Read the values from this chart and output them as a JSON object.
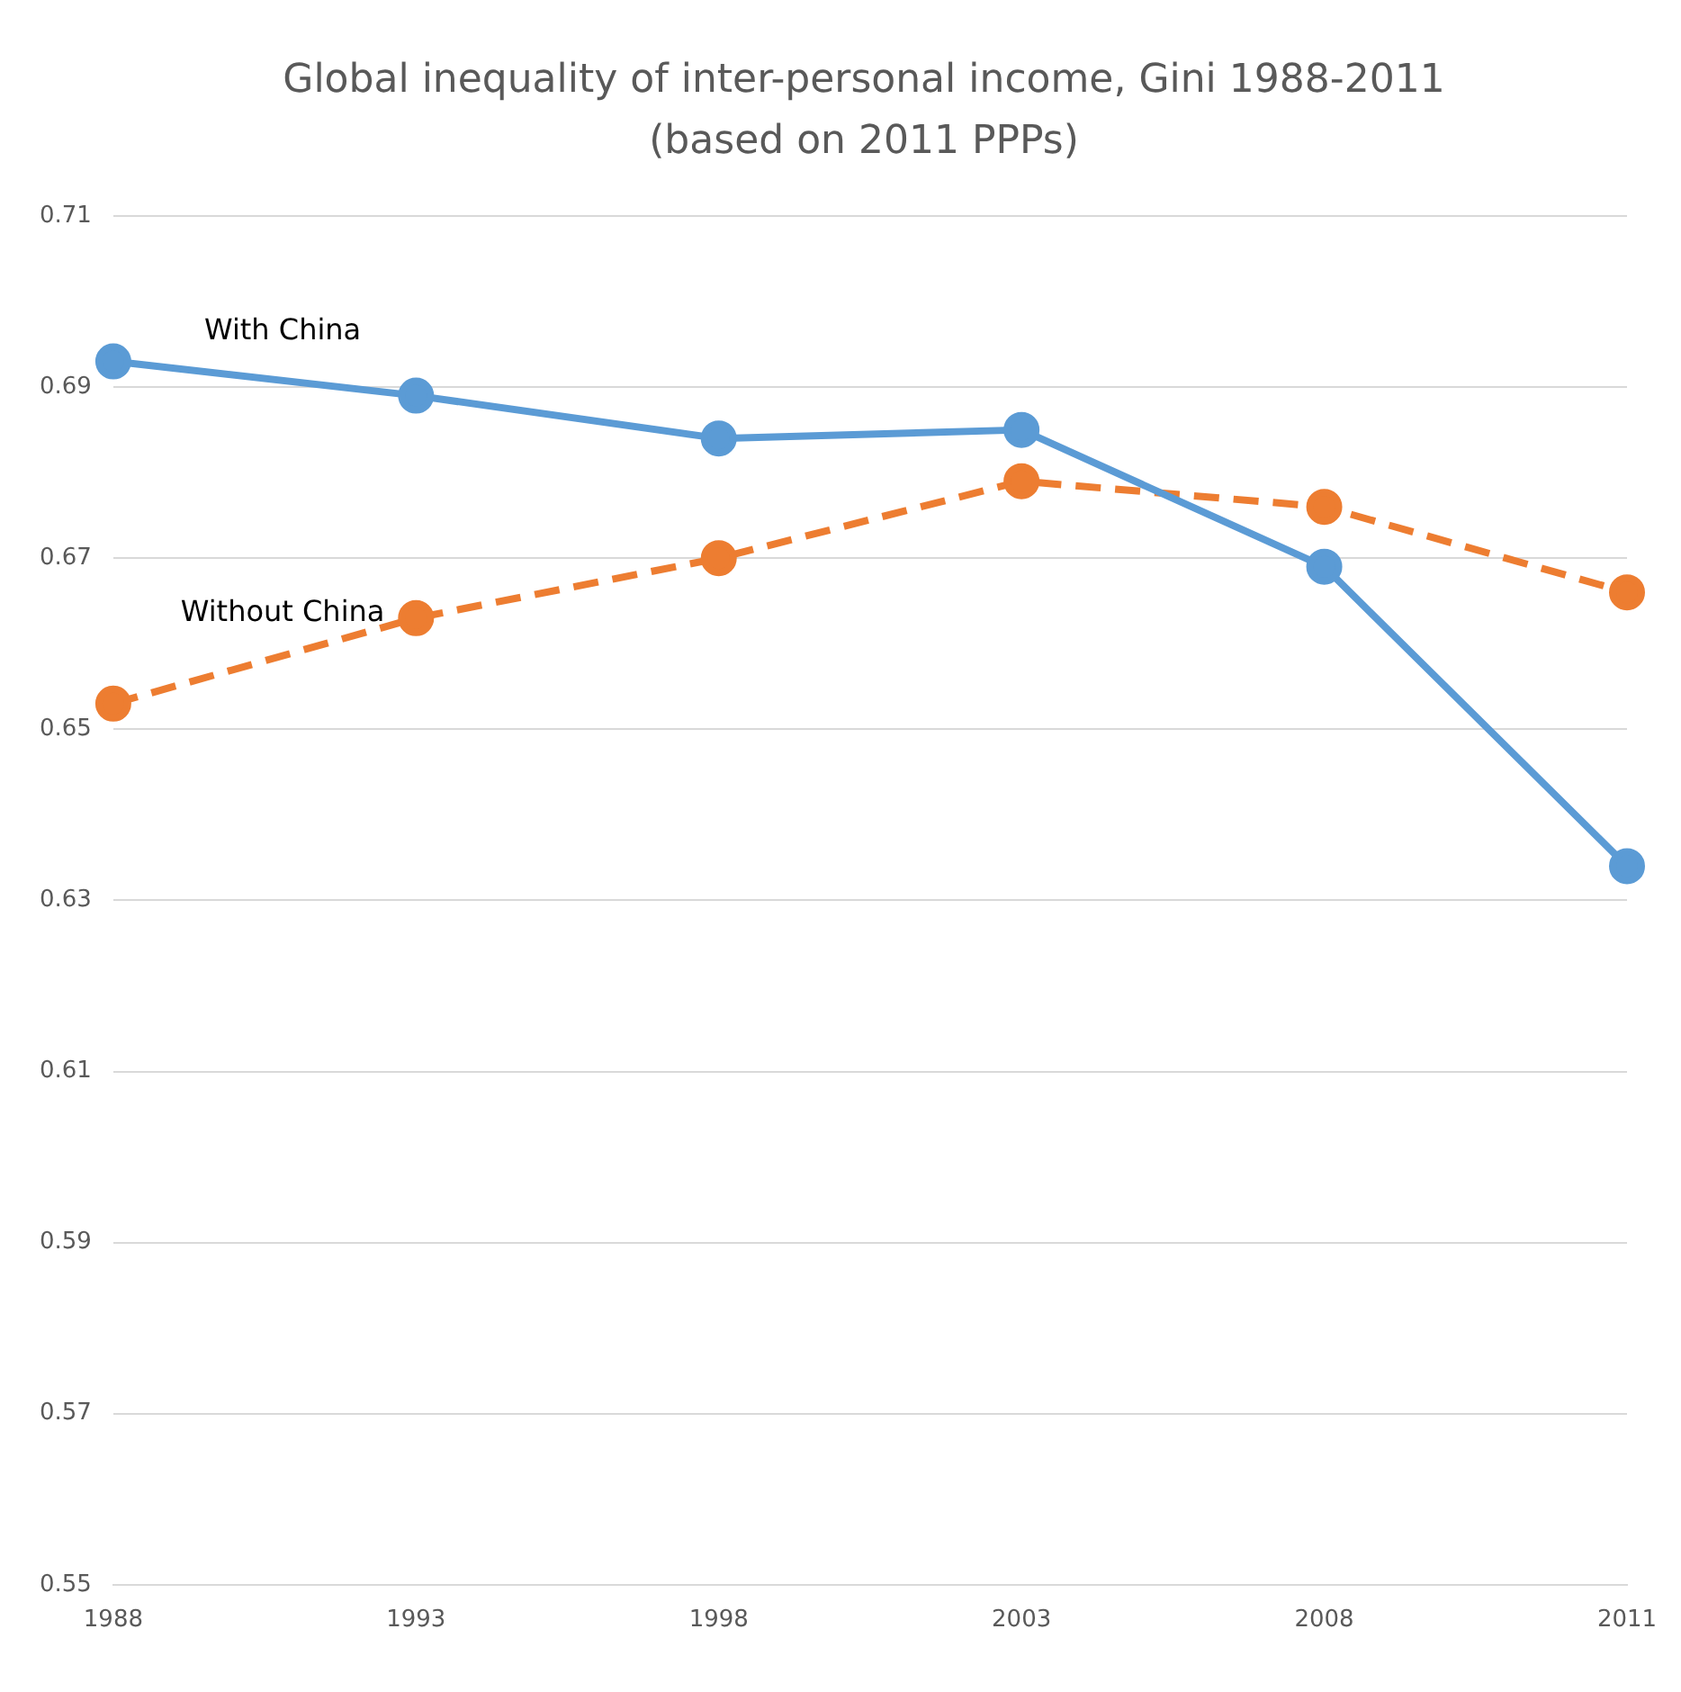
{
  "chart_data": {
    "type": "line",
    "title": "Global inequality of inter-personal income, Gini 1988-2011 (based on 2011 PPPs)",
    "categories": [
      "1988",
      "1993",
      "1998",
      "2003",
      "2008",
      "2011"
    ],
    "series": [
      {
        "name": "With China",
        "color": "#5b9bd5",
        "values": [
          0.693,
          0.689,
          0.684,
          0.685,
          0.669,
          0.634
        ],
        "line_style": "solid"
      },
      {
        "name": "Without China",
        "color": "#ed7d31",
        "values": [
          0.653,
          0.663,
          0.67,
          0.679,
          0.676,
          0.666
        ],
        "line_style": "dashed"
      }
    ],
    "ylim": [
      0.55,
      0.71
    ],
    "yticks": [
      0.55,
      0.57,
      0.59,
      0.61,
      0.63,
      0.65,
      0.67,
      0.69,
      0.71
    ],
    "grid": "y",
    "legend": false,
    "marker": "circle"
  }
}
